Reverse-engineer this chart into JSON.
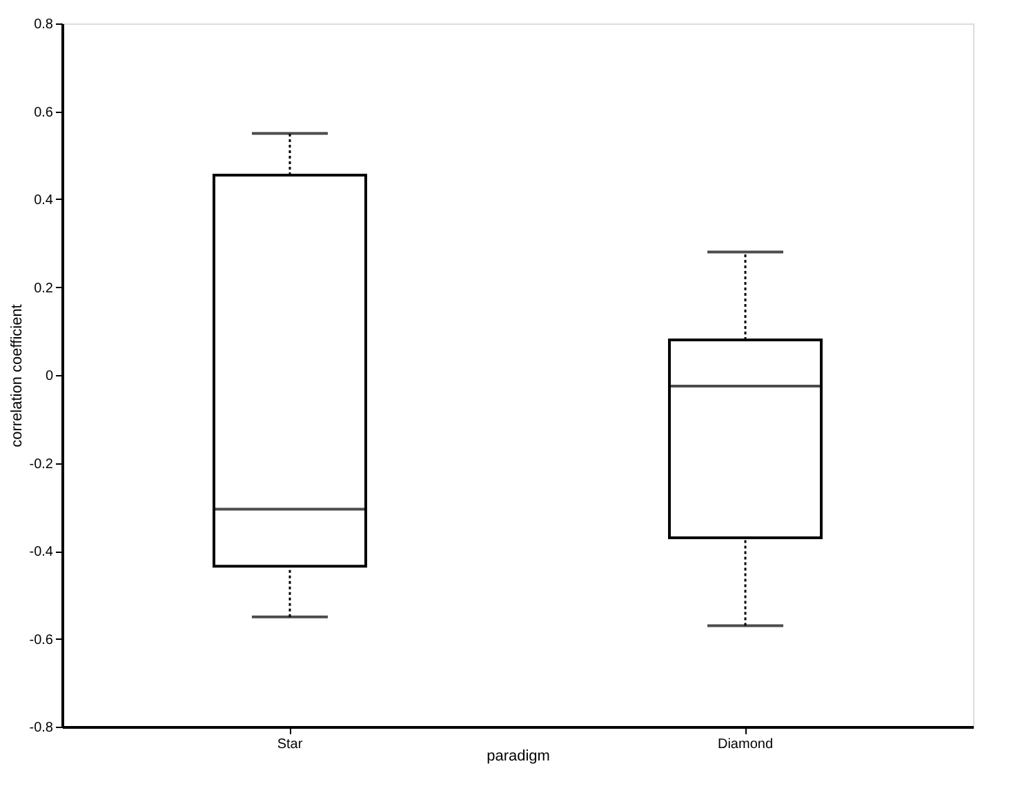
{
  "chart_data": {
    "type": "box",
    "xlabel": "paradigm",
    "ylabel": "correlation coefficient",
    "categories": [
      "Star",
      "Diamond"
    ],
    "boxes": [
      {
        "low": -0.55,
        "q1": -0.435,
        "median": -0.305,
        "q3": 0.455,
        "high": 0.55
      },
      {
        "low": -0.57,
        "q1": -0.37,
        "median": -0.025,
        "q3": 0.08,
        "high": 0.28
      }
    ],
    "ylim": [
      -0.8,
      0.8
    ],
    "yticks": [
      -0.8,
      -0.6,
      -0.4,
      -0.2,
      0,
      0.2,
      0.4,
      0.6,
      0.8
    ],
    "grid": false
  }
}
